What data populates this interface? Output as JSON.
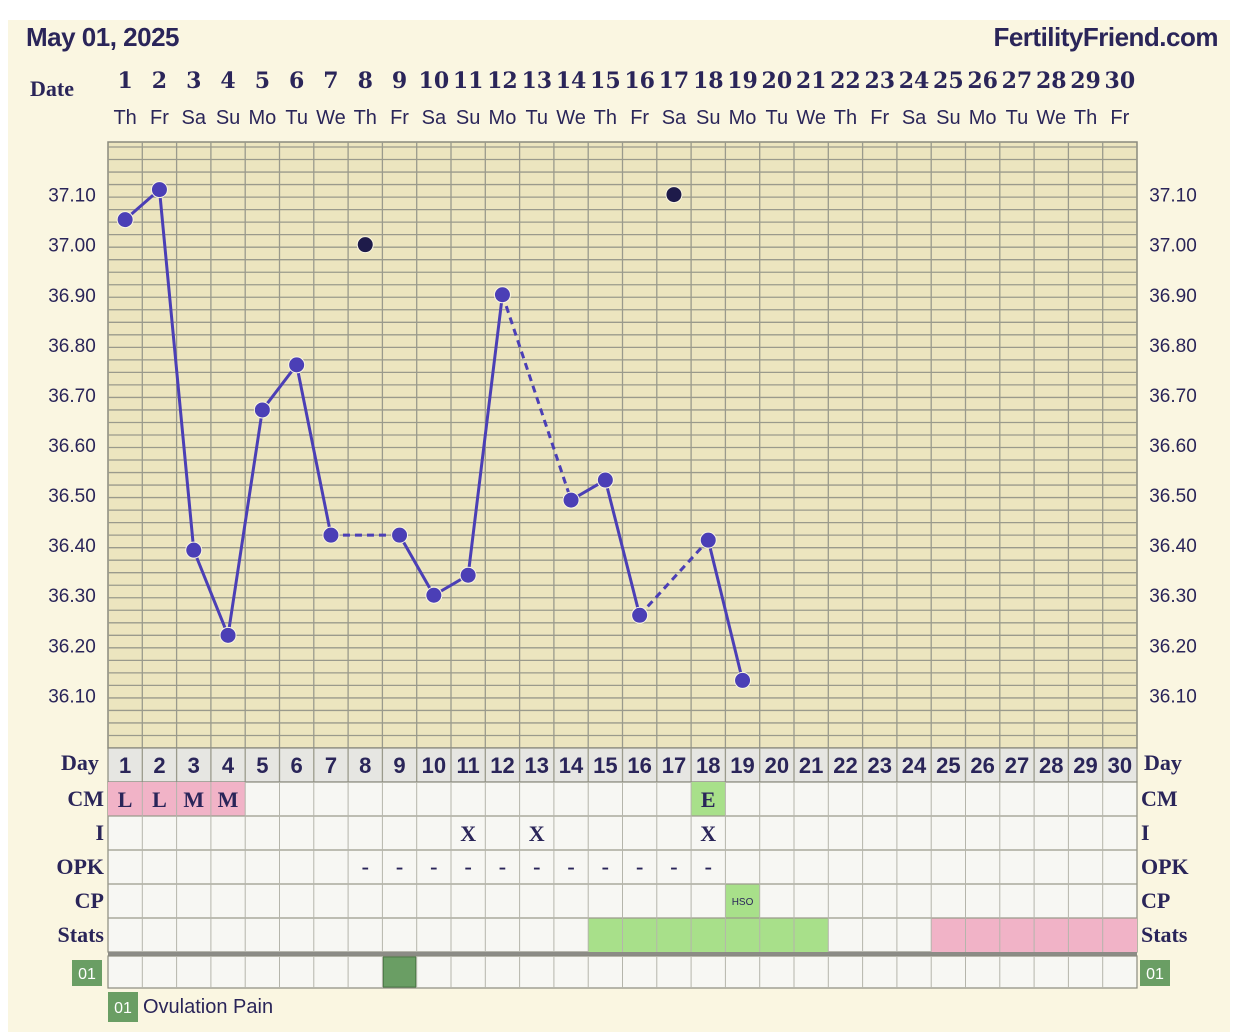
{
  "header": {
    "date": "May 01, 2025",
    "site": "FertilityFriend.com"
  },
  "labels": {
    "date": "Date",
    "day": "Day",
    "cm": "CM",
    "i": "I",
    "opk": "OPK",
    "cp": "CP",
    "stats": "Stats"
  },
  "days": [
    "1",
    "2",
    "3",
    "4",
    "5",
    "6",
    "7",
    "8",
    "9",
    "10",
    "11",
    "12",
    "13",
    "14",
    "15",
    "16",
    "17",
    "18",
    "19",
    "20",
    "21",
    "22",
    "23",
    "24",
    "25",
    "26",
    "27",
    "28",
    "29",
    "30"
  ],
  "weekdays": [
    "Th",
    "Fr",
    "Sa",
    "Su",
    "Mo",
    "Tu",
    "We",
    "Th",
    "Fr",
    "Sa",
    "Su",
    "Mo",
    "Tu",
    "We",
    "Th",
    "Fr",
    "Sa",
    "Su",
    "Mo",
    "Tu",
    "We",
    "Th",
    "Fr",
    "Sa",
    "Su",
    "Mo",
    "Tu",
    "We",
    "Th",
    "Fr"
  ],
  "chart_data": {
    "type": "line",
    "x": [
      1,
      2,
      3,
      4,
      5,
      6,
      7,
      8,
      9,
      10,
      11,
      12,
      13,
      14,
      15,
      16,
      17,
      18,
      19
    ],
    "series": [
      {
        "values": [
          37.05,
          37.11,
          36.39,
          36.22,
          36.67,
          36.76,
          36.42,
          null,
          36.42,
          36.3,
          36.34,
          36.9,
          null,
          36.49,
          36.53,
          36.26,
          null,
          36.41,
          36.13
        ],
        "color": "#4b3fb6"
      }
    ],
    "discarded_points": [
      {
        "x": 8,
        "y": 37.0
      },
      {
        "x": 17,
        "y": 37.1
      }
    ],
    "dashed_segments": [
      [
        7,
        9
      ],
      [
        12,
        14
      ],
      [
        16,
        18
      ]
    ],
    "solid_segments": [
      [
        1,
        7
      ],
      [
        9,
        12
      ],
      [
        14,
        16
      ],
      [
        18,
        19
      ]
    ],
    "y_ticks": [
      "36.10",
      "36.20",
      "36.30",
      "36.40",
      "36.50",
      "36.60",
      "36.70",
      "36.80",
      "36.90",
      "37.00",
      "37.10"
    ],
    "ylim": [
      35.995,
      37.205
    ],
    "xlim": [
      1,
      30
    ],
    "grid": true
  },
  "rows": {
    "cm": [
      {
        "day": 1,
        "value": "L",
        "color": "#f1b3c7"
      },
      {
        "day": 2,
        "value": "L",
        "color": "#f1b3c7"
      },
      {
        "day": 3,
        "value": "M",
        "color": "#f1b3c7"
      },
      {
        "day": 4,
        "value": "M",
        "color": "#f1b3c7"
      },
      {
        "day": 18,
        "value": "E",
        "color": "#a8e08a"
      }
    ],
    "i": [
      {
        "day": 11,
        "value": "X"
      },
      {
        "day": 13,
        "value": "X"
      },
      {
        "day": 18,
        "value": "X"
      }
    ],
    "opk": [
      {
        "day": 8,
        "value": "-"
      },
      {
        "day": 9,
        "value": "-"
      },
      {
        "day": 10,
        "value": "-"
      },
      {
        "day": 11,
        "value": "-"
      },
      {
        "day": 12,
        "value": "-"
      },
      {
        "day": 13,
        "value": "-"
      },
      {
        "day": 14,
        "value": "-"
      },
      {
        "day": 15,
        "value": "-"
      },
      {
        "day": 16,
        "value": "-"
      },
      {
        "day": 17,
        "value": "-"
      },
      {
        "day": 18,
        "value": "-"
      }
    ],
    "cp": [
      {
        "day": 19,
        "value": "HSO",
        "color": "#a8e08a"
      }
    ],
    "stats": {
      "green_days": [
        15,
        16,
        17,
        18,
        19,
        20,
        21
      ],
      "pink_days": [
        25,
        26,
        27,
        28,
        29,
        30
      ],
      "green": "#a8e08a",
      "pink": "#f1b3c7"
    },
    "symptom": {
      "badge": "01",
      "days": [
        9
      ],
      "color": "#6a9e64"
    }
  },
  "legend": {
    "badge": "01",
    "label": "Ovulation Pain"
  }
}
